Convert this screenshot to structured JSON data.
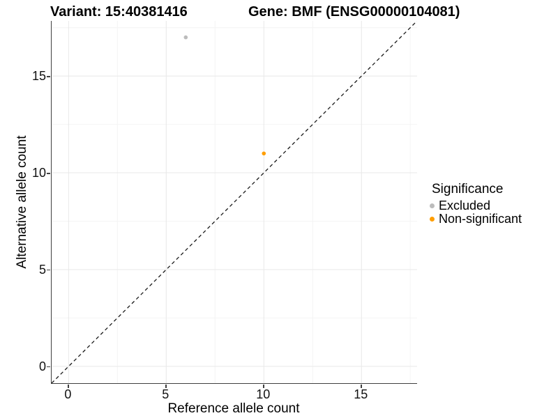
{
  "header": {
    "variant_title": "Variant: 15:40381416",
    "gene_title": "Gene: BMF (ENSG00000104081)"
  },
  "axes": {
    "x_label": "Reference allele count",
    "y_label": "Alternative allele count"
  },
  "legend": {
    "title": "Significance",
    "items": [
      {
        "label": "Excluded",
        "color": "#bcbcbc"
      },
      {
        "label": "Non-significant",
        "color": "#ff9e00"
      }
    ]
  },
  "chart_data": {
    "type": "scatter",
    "title": "Variant: 15:40381416 | Gene: BMF (ENSG00000104081)",
    "xlabel": "Reference allele count",
    "ylabel": "Alternative allele count",
    "xlim": [
      -0.87,
      17.85
    ],
    "ylim": [
      -0.87,
      17.85
    ],
    "x_ticks": [
      0,
      5,
      10,
      15
    ],
    "y_ticks": [
      0,
      5,
      10,
      15
    ],
    "minor_gridlines": [
      2.5,
      7.5,
      12.5,
      17.5
    ],
    "grid": true,
    "legend_position": "right",
    "legend_title": "Significance",
    "series": [
      {
        "name": "Excluded",
        "color": "#bcbcbc",
        "points": [
          [
            6,
            17
          ]
        ]
      },
      {
        "name": "Non-significant",
        "color": "#ff9e00",
        "points": [
          [
            10,
            11
          ]
        ]
      }
    ],
    "reference_line": {
      "type": "identity y=x",
      "style": "dashed",
      "color": "#1a1a1a"
    }
  },
  "colors": {
    "grid_major": "#e8e8e8",
    "grid_minor": "#f4f4f4",
    "axis_line": "#3f3f3f",
    "point_excluded": "#bcbcbc",
    "point_non_significant": "#ff9e00"
  }
}
